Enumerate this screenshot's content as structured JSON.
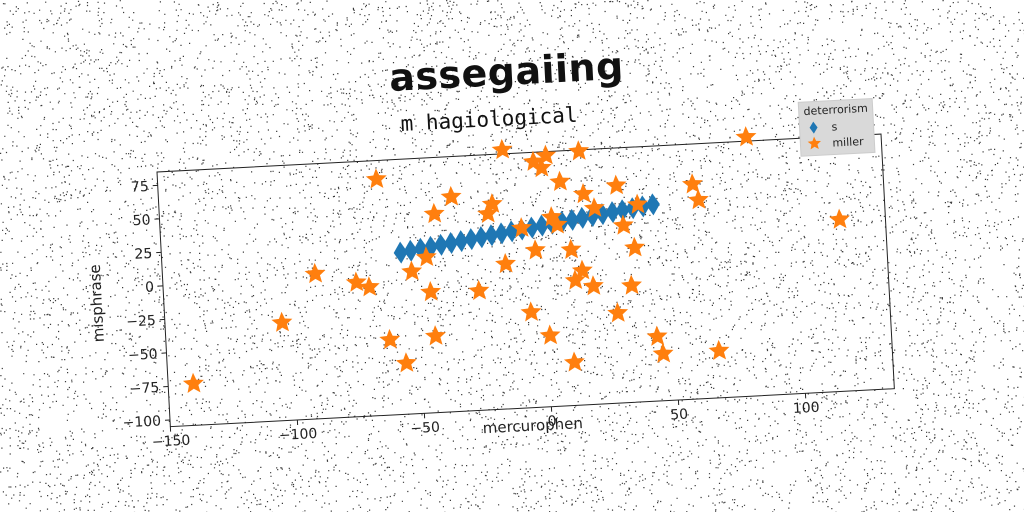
{
  "chart_data": {
    "type": "scatter",
    "title": "assegaiing",
    "subtitle": "m hagiological",
    "xlabel": "mercurophen",
    "ylabel": "misphrase",
    "xlim": [
      -150,
      135
    ],
    "ylim": [
      -105,
      85
    ],
    "xticks": [
      -150,
      -100,
      -50,
      0,
      50,
      100
    ],
    "yticks": [
      -100,
      -75,
      -50,
      -25,
      0,
      25,
      50,
      75
    ],
    "grid": false,
    "legend": {
      "title": "deterrorism",
      "placement": "top-right"
    },
    "series": [
      {
        "name": "s",
        "marker": "diamond",
        "color": "#1f77b4",
        "x": [
          -56,
          -52,
          -48,
          -44,
          -40,
          -36,
          -32,
          -28,
          -24,
          -20,
          -16,
          -12,
          -8,
          -4,
          0,
          4,
          8,
          12,
          16,
          20,
          24,
          28,
          32,
          36,
          40,
          44
        ],
        "y": [
          15.5,
          16.5,
          17.6,
          18.6,
          19.7,
          20.7,
          21.7,
          22.8,
          23.8,
          24.9,
          25.9,
          27.0,
          28.0,
          29.0,
          30.1,
          31.1,
          32.2,
          33.2,
          34.3,
          35.3,
          36.3,
          37.4,
          38.4,
          39.5,
          40.5,
          41.6
        ]
      },
      {
        "name": "miller",
        "marker": "star",
        "color": "#ff7f0e",
        "x": [
          -140,
          -104,
          -90,
          -74,
          -69,
          -64,
          -62,
          -56,
          -52,
          -46,
          -45,
          -44,
          -42,
          -35,
          -26,
          -21,
          -19,
          -15,
          -14,
          -8,
          -6,
          -3,
          -2,
          1,
          1,
          3,
          4,
          6,
          8,
          10,
          11,
          12,
          15,
          16,
          17,
          19,
          21,
          28,
          30,
          32,
          34,
          36,
          38,
          43,
          45,
          60,
          62,
          67,
          82,
          117
        ],
        "y": [
          -74,
          -32,
          3,
          -5,
          -9,
          71,
          -49,
          -67,
          1,
          11,
          -15,
          -48,
          43,
          55,
          -16,
          41,
          48,
          3,
          88,
          29,
          -34,
          12,
          78,
          73,
          -52,
          82,
          36,
          30,
          62,
          -73,
          11,
          -12,
          -5,
          84,
          52,
          -17,
          41,
          -38,
          57,
          27,
          -18,
          10,
          42,
          -57,
          -70,
          55,
          43,
          -70,
          88,
          23
        ]
      }
    ]
  }
}
